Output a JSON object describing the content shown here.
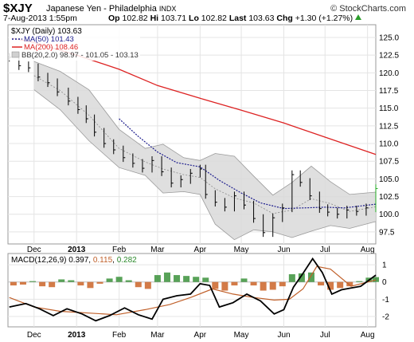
{
  "header": {
    "symbol": "$XJY",
    "name": "Japanese Yen - Philadelphia",
    "exchange": "INDX",
    "brand": "© StockCharts.com",
    "date": "7-Aug-2013 1:55pm",
    "open_label": "Op",
    "open": "102.82",
    "high_label": "Hi",
    "high": "103.71",
    "low_label": "Lo",
    "low": "102.82",
    "last_label": "Last",
    "last": "103.63",
    "chg_label": "Chg",
    "chg": "+1.30 (+1.27%)"
  },
  "legend": {
    "price": "$XJY (Daily) 103.63",
    "ma50": "MA(50) 101.43",
    "ma200": "MA(200) 108.46",
    "bb": "BB(20,2.0) 98.97 - 101.05 - 103.13"
  },
  "macd_legend": {
    "label": "MACD(12,26,9)",
    "macd": "0.397",
    "signal": "0.115",
    "hist": "0.282"
  },
  "colors": {
    "ma50": "#1a1a8c",
    "ma200": "#dd2222",
    "bb_fill": "#d9d9d9",
    "signal": "#c0602a",
    "hist_pos": "#2e8b2e",
    "hist_neg": "#c85a1a",
    "last_bar": "#22aa22"
  },
  "chart_data": [
    {
      "type": "line",
      "title": "$XJY (Daily)",
      "x_range": [
        "2012-11-12",
        "2013-08-07"
      ],
      "x_ticks": [
        "Dec",
        "2013",
        "Feb",
        "Mar",
        "Apr",
        "May",
        "Jun",
        "Jul",
        "Aug"
      ],
      "x_tick_dates": [
        "2012-12-01",
        "2013-01-01",
        "2013-02-01",
        "2013-03-01",
        "2013-04-01",
        "2013-05-01",
        "2013-06-01",
        "2013-07-01",
        "2013-08-01"
      ],
      "y_ticks": [
        "125.0",
        "122.5",
        "120.0",
        "117.5",
        "115.0",
        "112.5",
        "110.0",
        "107.5",
        "105.0",
        "102.5",
        "100.0",
        "97.5"
      ],
      "ylim": [
        95.8,
        126.8
      ],
      "grid": true,
      "series": [
        {
          "name": "$XJY (Daily)",
          "style": "ohlc-bars",
          "x": [
            "2012-11-13",
            "2012-11-20",
            "2012-11-27",
            "2012-12-04",
            "2012-12-11",
            "2012-12-18",
            "2012-12-26",
            "2013-01-02",
            "2013-01-08",
            "2013-01-14",
            "2013-01-21",
            "2013-01-28",
            "2013-02-04",
            "2013-02-11",
            "2013-02-18",
            "2013-02-25",
            "2013-03-04",
            "2013-03-11",
            "2013-03-18",
            "2013-03-25",
            "2013-04-01",
            "2013-04-05",
            "2013-04-12",
            "2013-04-19",
            "2013-04-26",
            "2013-05-03",
            "2013-05-10",
            "2013-05-17",
            "2013-05-24",
            "2013-05-31",
            "2013-06-07",
            "2013-06-13",
            "2013-06-20",
            "2013-06-27",
            "2013-07-03",
            "2013-07-10",
            "2013-07-17",
            "2013-07-24",
            "2013-07-31",
            "2013-08-07"
          ],
          "values": [
            122.2,
            121.0,
            120.7,
            119.4,
            118.6,
            117.3,
            116.0,
            114.8,
            113.5,
            111.6,
            110.0,
            109.1,
            108.0,
            107.2,
            106.5,
            107.6,
            106.0,
            104.4,
            104.9,
            105.8,
            106.4,
            102.8,
            101.7,
            101.0,
            102.6,
            101.3,
            99.4,
            97.4,
            99.5,
            100.9,
            105.6,
            104.5,
            102.6,
            100.8,
            100.3,
            100.0,
            100.6,
            100.4,
            100.9,
            103.63
          ]
        },
        {
          "name": "MA(50)",
          "style": "dotted",
          "x": [
            "2013-02-01",
            "2013-02-15",
            "2013-03-01",
            "2013-03-15",
            "2013-04-01",
            "2013-04-15",
            "2013-05-01",
            "2013-05-15",
            "2013-06-01",
            "2013-06-15",
            "2013-07-01",
            "2013-07-15",
            "2013-08-07"
          ],
          "values": [
            113.5,
            111.0,
            108.8,
            107.3,
            106.7,
            104.8,
            103.0,
            101.6,
            100.8,
            100.9,
            101.0,
            100.9,
            101.43
          ]
        },
        {
          "name": "MA(200)",
          "style": "solid",
          "x": [
            "2012-11-15",
            "2012-12-01",
            "2013-01-01",
            "2013-02-01",
            "2013-03-01",
            "2013-04-01",
            "2013-05-01",
            "2013-06-01",
            "2013-07-01",
            "2013-08-07"
          ],
          "values": [
            124.9,
            124.3,
            122.5,
            120.5,
            118.2,
            116.4,
            114.7,
            112.9,
            110.9,
            108.46
          ]
        },
        {
          "name": "BB(20,2.0) upper",
          "x": [
            "2012-12-01",
            "2012-12-20",
            "2013-01-10",
            "2013-02-01",
            "2013-02-20",
            "2013-03-05",
            "2013-03-20",
            "2013-04-01",
            "2013-04-12",
            "2013-04-26",
            "2013-05-10",
            "2013-05-24",
            "2013-06-07",
            "2013-06-21",
            "2013-07-05",
            "2013-07-19",
            "2013-08-07"
          ],
          "values": [
            121.6,
            120.2,
            117.6,
            112.0,
            109.3,
            109.9,
            108.0,
            107.6,
            108.6,
            108.2,
            105.4,
            102.7,
            104.5,
            106.8,
            104.6,
            102.8,
            103.13
          ]
        },
        {
          "name": "BB(20,2.0) middle",
          "x": [
            "2012-12-01",
            "2012-12-20",
            "2013-01-10",
            "2013-02-01",
            "2013-02-20",
            "2013-03-05",
            "2013-03-20",
            "2013-04-01",
            "2013-04-12",
            "2013-04-26",
            "2013-05-10",
            "2013-05-24",
            "2013-06-07",
            "2013-06-21",
            "2013-07-05",
            "2013-07-19",
            "2013-08-07"
          ],
          "values": [
            119.6,
            117.5,
            114.0,
            109.3,
            107.4,
            106.4,
            105.6,
            105.2,
            103.6,
            102.3,
            101.6,
            100.1,
            100.6,
            102.2,
            101.5,
            100.4,
            101.05
          ]
        },
        {
          "name": "BB(20,2.0) lower",
          "x": [
            "2012-12-01",
            "2012-12-20",
            "2013-01-10",
            "2013-02-01",
            "2013-02-20",
            "2013-03-05",
            "2013-03-20",
            "2013-04-01",
            "2013-04-12",
            "2013-04-26",
            "2013-05-10",
            "2013-05-24",
            "2013-06-07",
            "2013-06-21",
            "2013-07-05",
            "2013-07-19",
            "2013-08-07"
          ],
          "values": [
            117.6,
            114.8,
            110.4,
            106.6,
            105.5,
            103.0,
            103.2,
            102.8,
            98.6,
            96.4,
            97.8,
            97.5,
            96.7,
            97.6,
            98.4,
            98.0,
            98.97
          ]
        }
      ]
    },
    {
      "type": "line",
      "title": "MACD(12,26,9)",
      "x_range": [
        "2012-11-12",
        "2013-08-07"
      ],
      "x_ticks": [
        "Dec",
        "2013",
        "Feb",
        "Mar",
        "Apr",
        "May",
        "Jun",
        "Jul",
        "Aug"
      ],
      "y_ticks": [
        "1",
        "0",
        "-1",
        "-2"
      ],
      "ylim": [
        -2.6,
        1.65
      ],
      "grid": true,
      "series": [
        {
          "name": "MACD(12,26,9)",
          "x": [
            "2012-11-13",
            "2012-11-25",
            "2012-12-05",
            "2012-12-15",
            "2012-12-25",
            "2013-01-05",
            "2013-01-15",
            "2013-01-25",
            "2013-02-05",
            "2013-02-15",
            "2013-02-25",
            "2013-03-05",
            "2013-03-15",
            "2013-03-25",
            "2013-04-01",
            "2013-04-08",
            "2013-04-15",
            "2013-04-25",
            "2013-05-05",
            "2013-05-15",
            "2013-05-25",
            "2013-06-01",
            "2013-06-08",
            "2013-06-15",
            "2013-06-22",
            "2013-06-29",
            "2013-07-06",
            "2013-07-13",
            "2013-07-20",
            "2013-07-27",
            "2013-08-07"
          ],
          "values": [
            -1.45,
            -1.25,
            -1.55,
            -1.95,
            -1.55,
            -1.85,
            -2.25,
            -1.95,
            -1.5,
            -1.9,
            -2.15,
            -1.0,
            -0.8,
            -0.7,
            -0.1,
            -0.2,
            -1.45,
            -1.2,
            -0.7,
            -1.1,
            -1.85,
            -1.6,
            -0.3,
            0.5,
            1.35,
            0.55,
            -0.7,
            -0.45,
            -0.35,
            -0.25,
            0.397
          ]
        },
        {
          "name": "Signal",
          "x": [
            "2012-11-13",
            "2012-12-01",
            "2012-12-20",
            "2013-01-10",
            "2013-01-30",
            "2013-02-20",
            "2013-03-10",
            "2013-03-25",
            "2013-04-10",
            "2013-04-25",
            "2013-05-10",
            "2013-05-25",
            "2013-06-05",
            "2013-06-15",
            "2013-06-25",
            "2013-07-05",
            "2013-07-20",
            "2013-08-07"
          ],
          "values": [
            -0.9,
            -1.45,
            -1.7,
            -1.8,
            -1.9,
            -1.6,
            -1.3,
            -0.9,
            -0.4,
            -0.7,
            -0.9,
            -1.05,
            -1.0,
            -0.4,
            0.9,
            0.75,
            -0.25,
            0.115
          ]
        },
        {
          "name": "Histogram",
          "style": "bars",
          "x": [
            "2012-11-16",
            "2012-11-23",
            "2012-11-30",
            "2012-12-07",
            "2012-12-14",
            "2012-12-21",
            "2012-12-28",
            "2013-01-04",
            "2013-01-11",
            "2013-01-18",
            "2013-01-25",
            "2013-02-01",
            "2013-02-08",
            "2013-02-15",
            "2013-02-22",
            "2013-03-01",
            "2013-03-08",
            "2013-03-15",
            "2013-03-22",
            "2013-03-29",
            "2013-04-05",
            "2013-04-12",
            "2013-04-19",
            "2013-04-26",
            "2013-05-03",
            "2013-05-10",
            "2013-05-17",
            "2013-05-24",
            "2013-05-31",
            "2013-06-07",
            "2013-06-14",
            "2013-06-21",
            "2013-06-28",
            "2013-07-05",
            "2013-07-12",
            "2013-07-19",
            "2013-07-26",
            "2013-08-02",
            "2013-08-07"
          ],
          "values": [
            -0.2,
            -0.15,
            0.05,
            -0.25,
            -0.3,
            0.15,
            0.1,
            -0.2,
            -0.35,
            -0.1,
            0.2,
            0.3,
            0.1,
            -0.3,
            -0.4,
            0.4,
            0.55,
            0.4,
            0.35,
            0.3,
            0.25,
            -0.4,
            -0.5,
            -0.2,
            0.2,
            -0.2,
            -0.5,
            -0.45,
            -0.25,
            0.45,
            0.5,
            0.55,
            -0.2,
            -0.45,
            -0.35,
            -0.25,
            0.05,
            0.25,
            0.282
          ]
        }
      ]
    }
  ]
}
